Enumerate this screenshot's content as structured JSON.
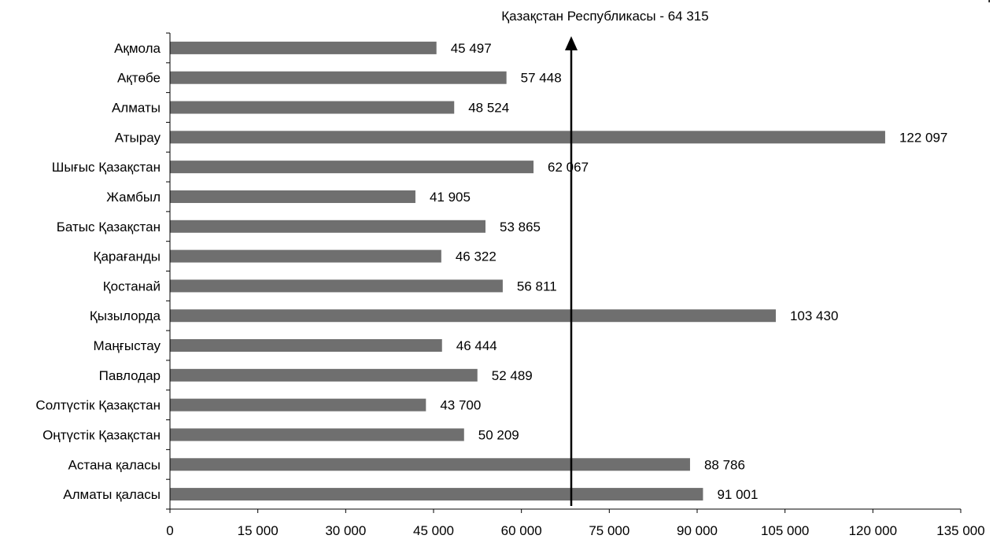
{
  "chart_data": {
    "type": "bar",
    "orientation": "horizontal",
    "categories": [
      "Ақмола",
      "Ақтөбе",
      "Алматы",
      "Атырау",
      "Шығыс Қазақстан",
      "Жамбыл",
      "Батыс Қазақстан",
      "Қарағанды",
      "Қостанай",
      "Қызылорда",
      "Маңғыстау",
      "Павлодар",
      "Солтүстік Қазақстан",
      "Оңтүстік Қазақстан",
      "Астана қаласы",
      "Алматы қаласы"
    ],
    "values": [
      45497,
      57448,
      48524,
      122097,
      62067,
      41905,
      53865,
      46322,
      56811,
      103430,
      46444,
      52489,
      43700,
      50209,
      88786,
      91001
    ],
    "value_labels": [
      "45 497",
      "57 448",
      "48 524",
      "122 097",
      "62 067",
      "41 905",
      "53 865",
      "46 322",
      "56 811",
      "103 430",
      "46 444",
      "52 489",
      "43 700",
      "50 209",
      "88 786",
      "91 001"
    ],
    "xlim": [
      0,
      135000
    ],
    "xticks": [
      0,
      15000,
      30000,
      45000,
      60000,
      75000,
      90000,
      105000,
      120000,
      135000
    ],
    "xtick_labels": [
      "0",
      "15 000",
      "30 000",
      "45 000",
      "60 000",
      "75 000",
      "90 000",
      "105 000",
      "120 000",
      "135 000"
    ],
    "reference": {
      "label": "Қазақстан Республикасы - 64 315",
      "value": 64315
    },
    "corner_text": "Т",
    "title": "",
    "xlabel": "",
    "ylabel": "",
    "grid": false,
    "bar_color": "#6f6f6f"
  }
}
